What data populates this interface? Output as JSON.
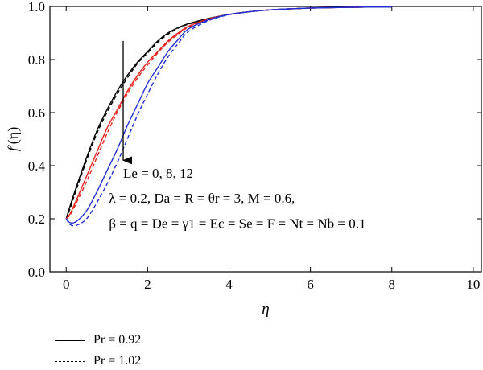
{
  "chart_data": {
    "type": "line",
    "xlabel": "η",
    "ylabel_main": "f",
    "ylabel_prime": "′",
    "ylabel_arg": "(η)",
    "xlim": [
      -0.4,
      10.2
    ],
    "ylim": [
      0.0,
      1.0
    ],
    "xticks": [
      0,
      2,
      4,
      6,
      8,
      10
    ],
    "yticks": [
      0.0,
      0.2,
      0.4,
      0.6,
      0.8,
      1.0
    ],
    "xtick_labels": [
      "0",
      "2",
      "4",
      "6",
      "8",
      "10"
    ],
    "ytick_labels": [
      "0.0",
      "0.2",
      "0.4",
      "0.6",
      "0.8",
      "1.0"
    ],
    "grid": false,
    "x": [
      0,
      0.1,
      0.25,
      0.5,
      0.75,
      1.0,
      1.25,
      1.5,
      1.75,
      2.0,
      2.25,
      2.5,
      2.75,
      3.0,
      3.5,
      4.0,
      4.5,
      5.0,
      6.0,
      7.0,
      8.0
    ],
    "series": [
      {
        "color": "#000000",
        "dash": "solid",
        "values": [
          0.2,
          0.25,
          0.32,
          0.43,
          0.53,
          0.61,
          0.68,
          0.74,
          0.79,
          0.83,
          0.87,
          0.9,
          0.92,
          0.935,
          0.955,
          0.97,
          0.98,
          0.987,
          0.994,
          0.997,
          0.998
        ]
      },
      {
        "color": "#000000",
        "dash": "dashed",
        "values": [
          0.2,
          0.24,
          0.31,
          0.42,
          0.52,
          0.6,
          0.67,
          0.73,
          0.785,
          0.825,
          0.865,
          0.895,
          0.918,
          0.933,
          0.954,
          0.97,
          0.98,
          0.987,
          0.994,
          0.997,
          0.998
        ]
      },
      {
        "color": "#e8211b",
        "dash": "solid",
        "values": [
          0.2,
          0.22,
          0.27,
          0.36,
          0.45,
          0.54,
          0.61,
          0.68,
          0.74,
          0.79,
          0.83,
          0.87,
          0.9,
          0.925,
          0.953,
          0.97,
          0.98,
          0.987,
          0.994,
          0.997,
          0.998
        ]
      },
      {
        "color": "#e8211b",
        "dash": "dashed",
        "values": [
          0.2,
          0.215,
          0.26,
          0.34,
          0.43,
          0.52,
          0.6,
          0.67,
          0.73,
          0.78,
          0.825,
          0.865,
          0.895,
          0.922,
          0.952,
          0.97,
          0.98,
          0.987,
          0.994,
          0.997,
          0.998
        ]
      },
      {
        "color": "#1f2fd6",
        "dash": "solid",
        "values": [
          0.2,
          0.185,
          0.19,
          0.23,
          0.3,
          0.38,
          0.46,
          0.55,
          0.63,
          0.71,
          0.77,
          0.83,
          0.875,
          0.915,
          0.95,
          0.97,
          0.98,
          0.987,
          0.994,
          0.997,
          0.998
        ]
      },
      {
        "color": "#1f2fd6",
        "dash": "dashed",
        "values": [
          0.2,
          0.178,
          0.175,
          0.2,
          0.26,
          0.33,
          0.41,
          0.5,
          0.59,
          0.67,
          0.745,
          0.81,
          0.86,
          0.905,
          0.947,
          0.969,
          0.98,
          0.987,
          0.994,
          0.997,
          0.998
        ]
      }
    ],
    "arrow": {
      "x": 1.4,
      "y_start": 0.87,
      "y_end": 0.42
    },
    "annotations": [
      {
        "text": "Le = 0, 8, 12",
        "x": 1.4,
        "y": 0.355
      },
      {
        "text": "λ = 0.2, Da = R = θr = 3, M = 0.6,",
        "x": 1.05,
        "y": 0.26
      },
      {
        "text": "β = q = De = γ1 = Ec = Se = F = Nt = Nb = 0.1",
        "x": 1.05,
        "y": 0.165
      }
    ],
    "legend": {
      "placement": "below-chart",
      "entries": [
        {
          "label": "Pr = 0.92",
          "dash": "solid"
        },
        {
          "label": "Pr = 1.02",
          "dash": "dashed"
        }
      ]
    }
  }
}
